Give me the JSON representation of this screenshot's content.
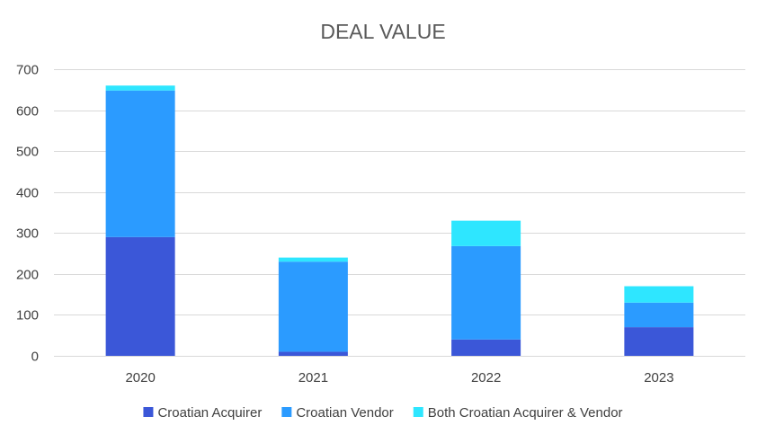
{
  "chart_data": {
    "type": "bar",
    "stacked": true,
    "title": "DEAL VALUE",
    "xlabel": "",
    "ylabel": "",
    "categories": [
      "2020",
      "2021",
      "2022",
      "2023"
    ],
    "ylim": [
      0,
      700
    ],
    "yticks": [
      0,
      100,
      200,
      300,
      400,
      500,
      600,
      700
    ],
    "grid": true,
    "legend": "bottom",
    "series": [
      {
        "name": "Croatian Acquirer",
        "color": "#3b57d8",
        "values": [
          290,
          10,
          40,
          70
        ]
      },
      {
        "name": "Croatian Vendor",
        "color": "#2b9bff",
        "values": [
          358,
          220,
          228,
          60
        ]
      },
      {
        "name": "Both Croatian Acquirer & Vendor",
        "color": "#2ee6ff",
        "values": [
          12,
          10,
          62,
          40
        ]
      }
    ]
  }
}
